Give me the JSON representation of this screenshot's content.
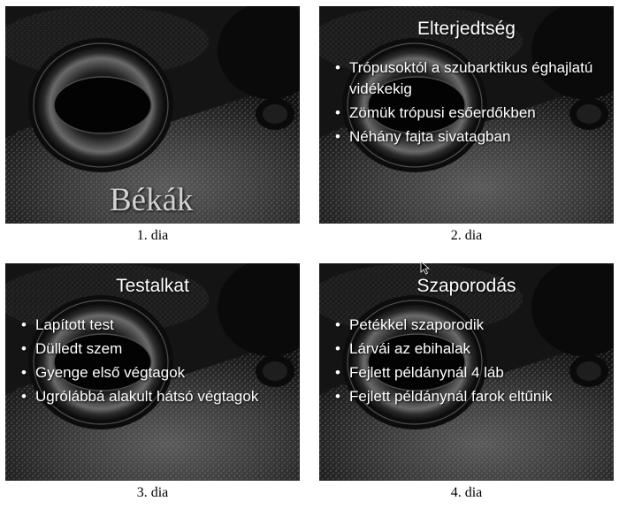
{
  "slides": [
    {
      "caption": "1. dia",
      "cover_title": "Békák"
    },
    {
      "caption": "2. dia",
      "title": "Elterjedtség",
      "bullets": [
        "Trópusoktól a szubarktikus éghajlatú vidékekig",
        "Zömük trópusi esőerdőkben",
        "Néhány fajta sivatagban"
      ]
    },
    {
      "caption": "3. dia",
      "title": "Testalkat",
      "bullets": [
        "Lapított test",
        "Dülledt szem",
        "Gyenge első végtagok",
        "Ugrólábbá alakult hátsó végtagok"
      ]
    },
    {
      "caption": "4. dia",
      "title": "Szaporodás",
      "bullets": [
        "Petékkel szaporodik",
        "Lárvái az ebihalak",
        "Fejlett példánynál 4 láb",
        "Fejlett példánynál farok eltűnik"
      ]
    }
  ],
  "background_image": "frog-eye-photo"
}
